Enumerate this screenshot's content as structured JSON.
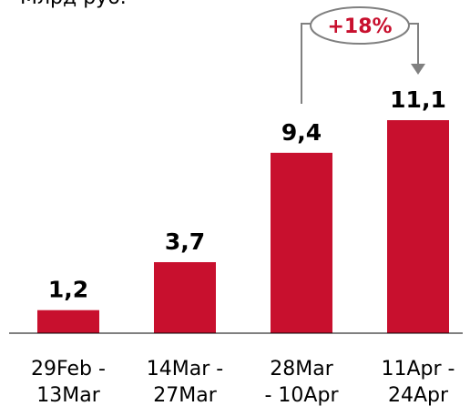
{
  "unit_label": "Млрд руб.",
  "chart_data": {
    "type": "bar",
    "categories": [
      [
        "29Feb -",
        "13Mar"
      ],
      [
        "14Mar -",
        "27Mar"
      ],
      [
        "28Mar",
        "- 10Apr"
      ],
      [
        "11Apr -",
        "24Apr"
      ]
    ],
    "values": [
      1.2,
      3.7,
      9.4,
      11.1
    ],
    "value_labels": [
      "1,2",
      "3,7",
      "9,4",
      "11,1"
    ],
    "ylim": [
      0,
      11.1
    ],
    "title": "",
    "xlabel": "",
    "ylabel": "",
    "growth_annotation": {
      "label": "+18%",
      "from_category": 2,
      "to_category": 3
    }
  },
  "colors": {
    "bar": "#c8102e",
    "baseline": "#000000",
    "annotation_text": "#c8102e",
    "annotation_line": "#808080"
  }
}
